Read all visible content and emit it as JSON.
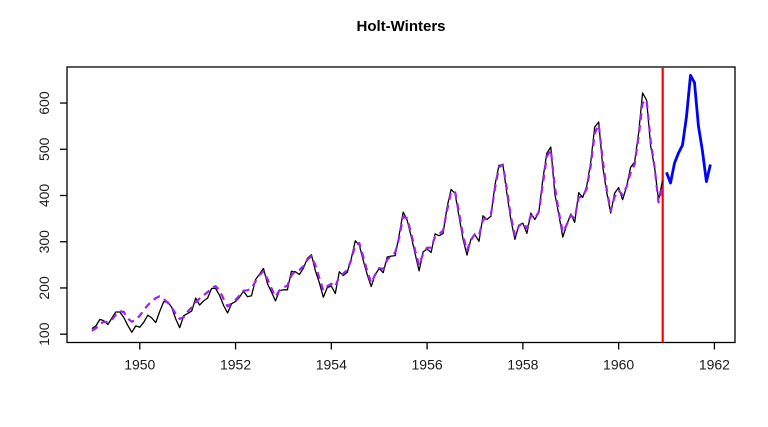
{
  "chart_data": {
    "type": "line",
    "title": "Holt-Winters",
    "xlabel": "",
    "ylabel": "",
    "grid": false,
    "legend_position": "none",
    "xlim": [
      1948.48,
      1962.43
    ],
    "ylim": [
      82,
      678
    ],
    "x_ticks": [
      1950,
      1952,
      1954,
      1956,
      1958,
      1960,
      1962
    ],
    "y_ticks": [
      100,
      200,
      300,
      400,
      500,
      600
    ],
    "frequency": 12,
    "series": [
      {
        "name": "observed",
        "color": "#000000",
        "style": "solid",
        "width": 1.3,
        "start": 1949.0,
        "values": [
          112,
          118,
          132,
          129,
          121,
          135,
          148,
          148,
          136,
          119,
          104,
          118,
          115,
          126,
          141,
          135,
          125,
          149,
          170,
          170,
          158,
          133,
          114,
          140,
          145,
          150,
          178,
          163,
          172,
          178,
          199,
          199,
          184,
          162,
          146,
          166,
          171,
          180,
          193,
          181,
          183,
          218,
          230,
          242,
          209,
          191,
          172,
          194,
          196,
          196,
          236,
          235,
          229,
          243,
          264,
          272,
          237,
          211,
          180,
          201,
          204,
          188,
          235,
          227,
          234,
          264,
          302,
          293,
          259,
          229,
          203,
          229,
          242,
          233,
          267,
          269,
          270,
          315,
          364,
          347,
          312,
          274,
          237,
          278,
          284,
          277,
          317,
          313,
          318,
          374,
          413,
          405,
          355,
          306,
          271,
          306,
          315,
          301,
          356,
          348,
          355,
          422,
          465,
          467,
          404,
          347,
          305,
          336,
          340,
          318,
          362,
          348,
          363,
          435,
          491,
          505,
          404,
          359,
          310,
          337,
          360,
          342,
          406,
          396,
          420,
          472,
          548,
          559,
          463,
          407,
          362,
          405,
          417,
          391,
          419,
          461,
          472,
          535,
          622,
          606,
          508,
          461,
          390,
          432
        ]
      },
      {
        "name": "fitted",
        "color": "#a020f0",
        "style": "dashed",
        "width": 2.2,
        "start": 1949.0,
        "values": [
          107,
          113,
          122,
          127,
          126,
          131,
          142,
          150,
          148,
          134,
          127,
          131,
          140,
          152,
          163,
          171,
          178,
          182,
          176,
          168,
          158,
          144,
          133,
          137,
          149,
          158,
          169,
          177,
          184,
          191,
          200,
          204,
          195,
          176,
          160,
          167,
          174,
          184,
          194,
          195,
          199,
          214,
          228,
          236,
          219,
          199,
          181,
          195,
          201,
          205,
          227,
          237,
          239,
          247,
          261,
          269,
          249,
          221,
          195,
          204,
          209,
          203,
          225,
          231,
          239,
          261,
          294,
          297,
          267,
          237,
          211,
          229,
          243,
          241,
          261,
          269,
          277,
          309,
          354,
          351,
          319,
          281,
          249,
          274,
          287,
          287,
          311,
          317,
          324,
          367,
          407,
          409,
          364,
          314,
          281,
          304,
          317,
          314,
          347,
          351,
          359,
          414,
          461,
          467,
          414,
          354,
          314,
          334,
          341,
          329,
          357,
          351,
          364,
          424,
          484,
          499,
          419,
          364,
          321,
          337,
          357,
          351,
          395,
          399,
          414,
          464,
          534,
          554,
          477,
          414,
          367,
          397,
          411,
          401,
          419,
          449,
          467,
          527,
          600,
          607,
          519,
          461,
          385,
          420
        ]
      },
      {
        "name": "forecast",
        "color": "#0000ff",
        "style": "solid",
        "width": 2.8,
        "start": 1961.0,
        "values": [
          450,
          427,
          470,
          492,
          509,
          571,
          660,
          644,
          551,
          497,
          430,
          467
        ]
      }
    ],
    "vline": {
      "x": 1960.92,
      "color": "#ff0000",
      "width": 2.2
    }
  }
}
